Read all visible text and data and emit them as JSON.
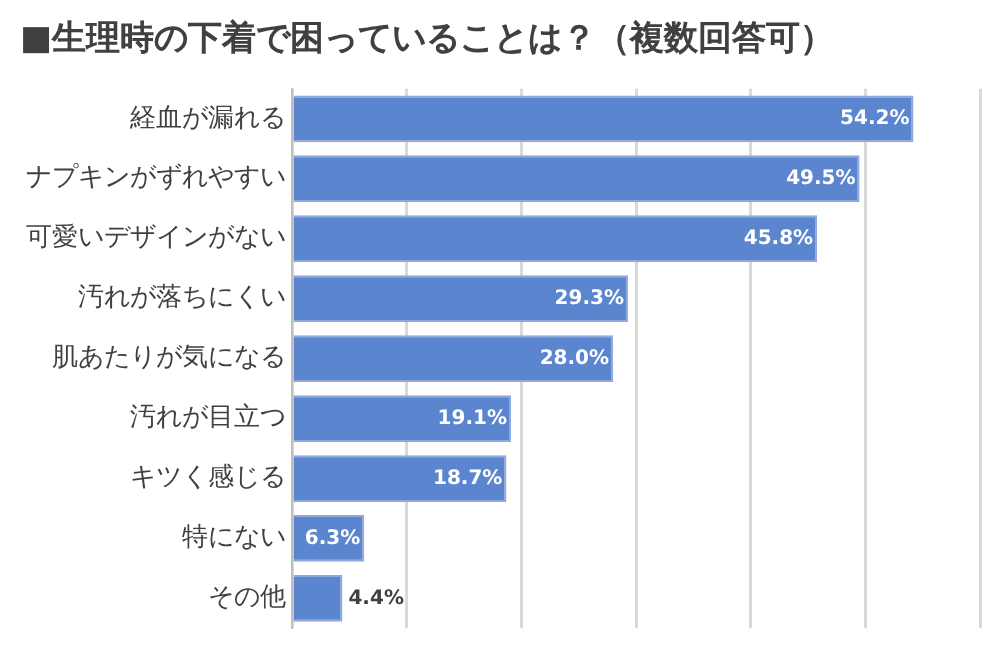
{
  "chart_data": {
    "type": "bar",
    "orientation": "horizontal",
    "title": "■生理時の下着で困っていることは？（複数回答可）",
    "categories": [
      "経血が漏れる",
      "ナプキンがずれやすい",
      "可愛いデザインがない",
      "汚れが落ちにくい",
      "肌あたりが気になる",
      "汚れが目立つ",
      "キツく感じる",
      "特にない",
      "その他"
    ],
    "values": [
      54.2,
      49.5,
      45.8,
      29.3,
      28.0,
      19.1,
      18.7,
      6.3,
      4.4
    ],
    "value_labels": [
      "54.2%",
      "49.5%",
      "45.8%",
      "29.3%",
      "28.0%",
      "19.1%",
      "18.7%",
      "6.3%",
      "4.4%"
    ],
    "color": "#5b86cf",
    "grid": "x",
    "tick_labels": "y",
    "legend": false
  }
}
